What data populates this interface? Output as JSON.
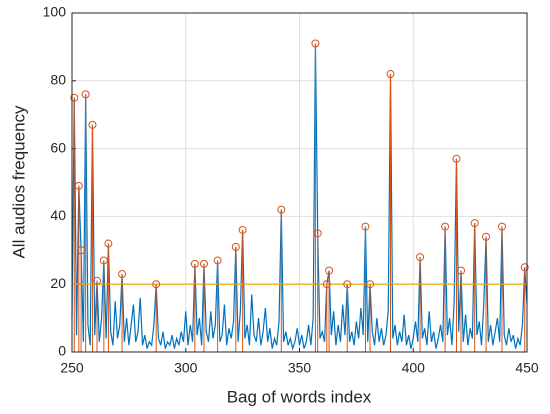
{
  "chart_data": {
    "type": "line",
    "xlabel": "Bag of words index",
    "ylabel": "All audios frequency",
    "xlim": [
      250,
      450
    ],
    "xticks": [
      250,
      300,
      350,
      400,
      450
    ],
    "ylim": [
      0,
      100
    ],
    "yticks": [
      0,
      20,
      40,
      60,
      80,
      100
    ],
    "grid": true,
    "reference_line": {
      "value": 20,
      "color": "#edb120"
    },
    "series": [
      {
        "kind": "line",
        "color": "#0072bd",
        "x": [
          250,
          251,
          252,
          253,
          254,
          255,
          256,
          257,
          258,
          259,
          260,
          261,
          262,
          263,
          264,
          265,
          266,
          267,
          268,
          269,
          270,
          271,
          272,
          273,
          274,
          275,
          276,
          277,
          278,
          279,
          280,
          281,
          282,
          283,
          284,
          285,
          286,
          287,
          288,
          289,
          290,
          291,
          292,
          293,
          294,
          295,
          296,
          297,
          298,
          299,
          300,
          301,
          302,
          303,
          304,
          305,
          306,
          307,
          308,
          309,
          310,
          311,
          312,
          313,
          314,
          315,
          316,
          317,
          318,
          319,
          320,
          321,
          322,
          323,
          324,
          325,
          326,
          327,
          328,
          329,
          330,
          331,
          332,
          333,
          334,
          335,
          336,
          337,
          338,
          339,
          340,
          341,
          342,
          343,
          344,
          345,
          346,
          347,
          348,
          349,
          350,
          351,
          352,
          353,
          354,
          355,
          356,
          357,
          358,
          359,
          360,
          361,
          362,
          363,
          364,
          365,
          366,
          367,
          368,
          369,
          370,
          371,
          372,
          373,
          374,
          375,
          376,
          377,
          378,
          379,
          380,
          381,
          382,
          383,
          384,
          385,
          386,
          387,
          388,
          389,
          390,
          391,
          392,
          393,
          394,
          395,
          396,
          397,
          398,
          399,
          400,
          401,
          402,
          403,
          404,
          405,
          406,
          407,
          408,
          409,
          410,
          411,
          412,
          413,
          414,
          415,
          416,
          417,
          418,
          419,
          420,
          421,
          422,
          423,
          424,
          425,
          426,
          427,
          428,
          429,
          430,
          431,
          432,
          433,
          434,
          435,
          436,
          437,
          438,
          439,
          440,
          441,
          442,
          443,
          444,
          445,
          446,
          447,
          448,
          449,
          450
        ],
        "values": [
          10,
          75,
          5,
          49,
          30,
          3,
          76,
          8,
          2,
          67,
          5,
          21,
          3,
          10,
          27,
          4,
          32,
          6,
          2,
          15,
          4,
          8,
          23,
          3,
          10,
          2,
          8,
          14,
          3,
          6,
          16,
          2,
          5,
          1,
          3,
          2,
          8,
          20,
          4,
          2,
          6,
          1,
          3,
          2,
          5,
          1,
          4,
          2,
          6,
          3,
          12,
          2,
          8,
          3,
          26,
          5,
          10,
          2,
          26,
          6,
          3,
          12,
          4,
          8,
          27,
          3,
          5,
          14,
          2,
          7,
          4,
          9,
          31,
          3,
          12,
          36,
          4,
          8,
          2,
          17,
          5,
          3,
          10,
          2,
          6,
          13,
          3,
          7,
          1,
          4,
          2,
          9,
          42,
          3,
          6,
          2,
          4,
          1,
          3,
          7,
          2,
          5,
          1,
          3,
          8,
          2,
          10,
          91,
          35,
          4,
          6,
          3,
          20,
          24,
          5,
          12,
          2,
          8,
          3,
          14,
          5,
          20,
          3,
          6,
          2,
          9,
          4,
          13,
          5,
          37,
          3,
          20,
          6,
          2,
          10,
          3,
          7,
          2,
          5,
          12,
          82,
          4,
          8,
          2,
          6,
          3,
          11,
          2,
          5,
          1,
          4,
          9,
          3,
          28,
          4,
          7,
          2,
          12,
          3,
          6,
          1,
          4,
          8,
          3,
          37,
          5,
          10,
          2,
          15,
          57,
          6,
          24,
          3,
          11,
          2,
          7,
          4,
          38,
          5,
          9,
          2,
          14,
          34,
          3,
          8,
          2,
          6,
          10,
          3,
          37,
          5,
          2,
          7,
          3,
          5,
          1,
          4,
          2,
          8,
          25,
          14
        ]
      },
      {
        "kind": "stem",
        "color": "#d95319",
        "x": [
          251,
          253,
          254,
          256,
          259,
          261,
          264,
          266,
          272,
          287,
          304,
          308,
          314,
          322,
          325,
          342,
          357,
          358,
          362,
          363,
          371,
          379,
          381,
          390,
          403,
          414,
          419,
          421,
          427,
          432,
          439,
          449
        ],
        "values": [
          75,
          49,
          30,
          76,
          67,
          21,
          27,
          32,
          23,
          20,
          26,
          26,
          27,
          31,
          36,
          42,
          91,
          35,
          20,
          24,
          20,
          37,
          20,
          82,
          28,
          37,
          57,
          24,
          38,
          34,
          37,
          25
        ]
      }
    ]
  }
}
